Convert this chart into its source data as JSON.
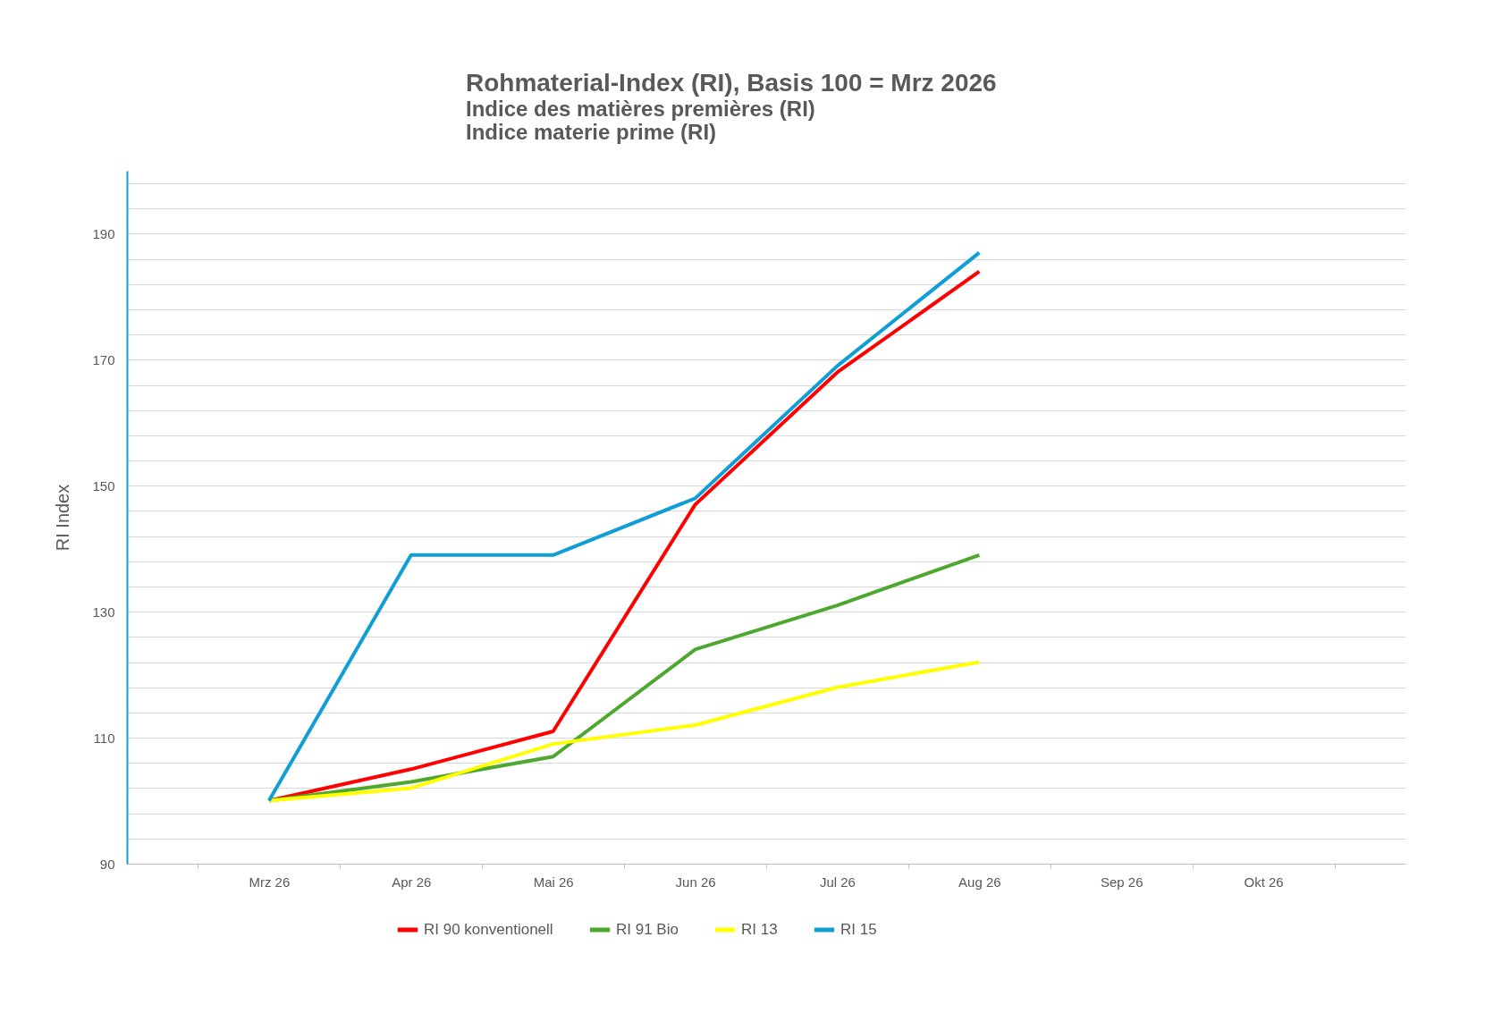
{
  "chart_data": {
    "type": "line",
    "title": "Rohmaterial-Index (RI), Basis 100 = Mrz 2026",
    "subtitle": [
      "Indice des matières premières (RI)",
      "Indice materie prime (RI)"
    ],
    "ylabel": "RI Index",
    "categories": [
      "Mrz 26",
      "Apr 26",
      "Mai 26",
      "Jun 26",
      "Jul 26",
      "Aug 26",
      "Sep 26",
      "Okt 26"
    ],
    "series": [
      {
        "name": "RI 90 konventionell",
        "color": "#ff0000",
        "values": [
          100,
          105,
          111,
          147,
          168,
          184,
          null,
          null
        ]
      },
      {
        "name": "RI 91 Bio",
        "color": "#4ea72e",
        "values": [
          100,
          103,
          107,
          124,
          131,
          139,
          null,
          null
        ]
      },
      {
        "name": "RI 13",
        "color": "#ffff00",
        "values": [
          100,
          102,
          109,
          112,
          118,
          122,
          null,
          null
        ]
      },
      {
        "name": "RI 15",
        "color": "#0f9ed5",
        "values": [
          100,
          139,
          139,
          148,
          169,
          187,
          null,
          null
        ]
      }
    ],
    "ylim": [
      90,
      200
    ],
    "yticks": [
      90,
      {
        "value": 94,
        "label": null
      },
      {
        "value": 98,
        "label": null
      },
      {
        "value": 102,
        "label": null
      },
      {
        "value": 106,
        "label": null
      },
      110,
      {
        "value": 114,
        "label": null
      },
      {
        "value": 118,
        "label": null
      },
      {
        "value": 122,
        "label": null
      },
      {
        "value": 126,
        "label": null
      },
      130,
      {
        "value": 134,
        "label": null
      },
      {
        "value": 138,
        "label": null
      },
      {
        "value": 142,
        "label": null
      },
      {
        "value": 146,
        "label": null
      },
      150,
      {
        "value": 154,
        "label": null
      },
      {
        "value": 158,
        "label": null
      },
      {
        "value": 162,
        "label": null
      },
      {
        "value": 166,
        "label": null
      },
      170,
      {
        "value": 174,
        "label": null
      },
      {
        "value": 178,
        "label": null
      },
      {
        "value": 182,
        "label": null
      },
      {
        "value": 186,
        "label": null
      },
      190,
      {
        "value": 194,
        "label": null
      },
      {
        "value": 198,
        "label": null
      }
    ],
    "grid": "y",
    "legend": "bottom",
    "marker": "none",
    "line_style": "solid"
  }
}
